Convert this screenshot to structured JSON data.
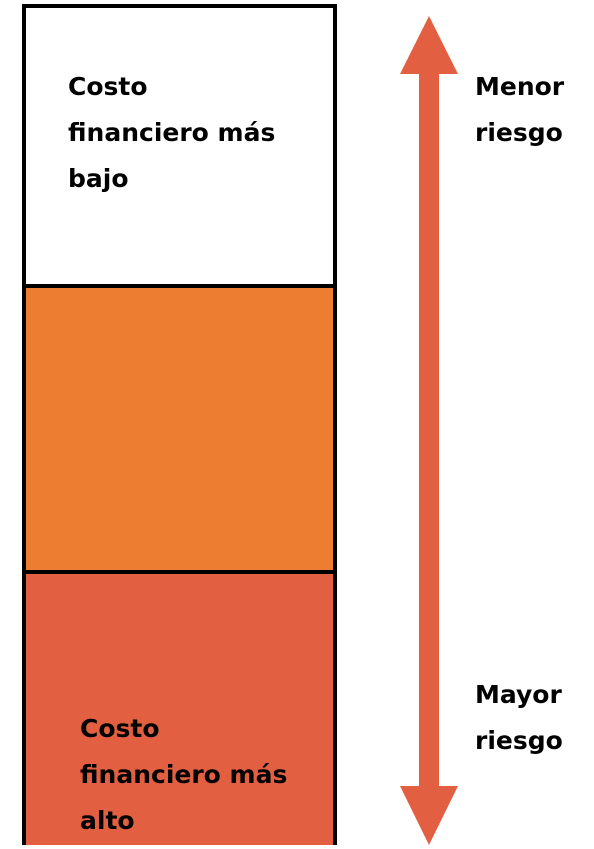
{
  "blocks": [
    {
      "lines": [
        "Costo",
        "financiero más",
        "bajo"
      ]
    },
    {
      "lines": []
    },
    {
      "lines": [
        "Costo",
        "financiero más",
        "alto"
      ]
    }
  ],
  "arrow": {
    "top": [
      "Menor",
      "riesgo"
    ],
    "bottom": [
      "Mayor",
      "riesgo"
    ]
  }
}
